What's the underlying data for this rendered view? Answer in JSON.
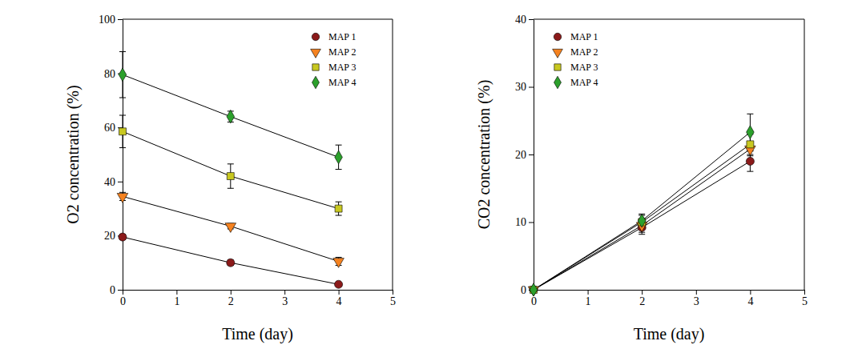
{
  "chart_data": [
    {
      "type": "line",
      "x_label": "Time (day)",
      "y_label": "O2 concentration (%)",
      "x": [
        0,
        2,
        4
      ],
      "xlim": [
        0,
        5
      ],
      "xticks": [
        0,
        1,
        2,
        3,
        4,
        5
      ],
      "ylim": [
        0,
        100
      ],
      "yticks": [
        0,
        20,
        40,
        60,
        80,
        100
      ],
      "legend": "top-right",
      "series": [
        {
          "name": "MAP 1",
          "color": "#8b1a1a",
          "marker": "circle",
          "values": [
            19.5,
            10,
            2
          ],
          "errors": [
            1,
            1,
            0.5
          ]
        },
        {
          "name": "MAP 2",
          "color": "#f5821f",
          "marker": "triangle-down",
          "values": [
            34.5,
            23.5,
            10.5
          ],
          "errors": [
            1.5,
            1,
            1.5
          ]
        },
        {
          "name": "MAP 3",
          "color": "#c8c820",
          "marker": "square",
          "values": [
            58.5,
            42,
            30
          ],
          "errors": [
            6,
            4.5,
            2.5
          ]
        },
        {
          "name": "MAP 4",
          "color": "#2ca02c",
          "marker": "diamond",
          "values": [
            79.5,
            64,
            49
          ],
          "errors": [
            8.5,
            2,
            4.5
          ]
        }
      ]
    },
    {
      "type": "line",
      "x_label": "Time (day)",
      "y_label": "CO2 concentration (%)",
      "x": [
        0,
        2,
        4
      ],
      "xlim": [
        0,
        5
      ],
      "xticks": [
        0,
        1,
        2,
        3,
        4,
        5
      ],
      "ylim": [
        0,
        40
      ],
      "yticks": [
        0,
        10,
        20,
        30,
        40
      ],
      "legend": "top-left",
      "series": [
        {
          "name": "MAP 1",
          "color": "#8b1a1a",
          "marker": "circle",
          "values": [
            0,
            9.2,
            19
          ],
          "errors": [
            0,
            1,
            1.5
          ]
        },
        {
          "name": "MAP 2",
          "color": "#f5821f",
          "marker": "triangle-down",
          "values": [
            0,
            9.5,
            20.8
          ],
          "errors": [
            0,
            1,
            1
          ]
        },
        {
          "name": "MAP 3",
          "color": "#c8c820",
          "marker": "square",
          "values": [
            0,
            10,
            21.5
          ],
          "errors": [
            0,
            1,
            1.5
          ]
        },
        {
          "name": "MAP 4",
          "color": "#2ca02c",
          "marker": "diamond",
          "values": [
            0,
            10.2,
            23.3
          ],
          "errors": [
            0,
            1,
            2.7
          ]
        }
      ]
    }
  ]
}
